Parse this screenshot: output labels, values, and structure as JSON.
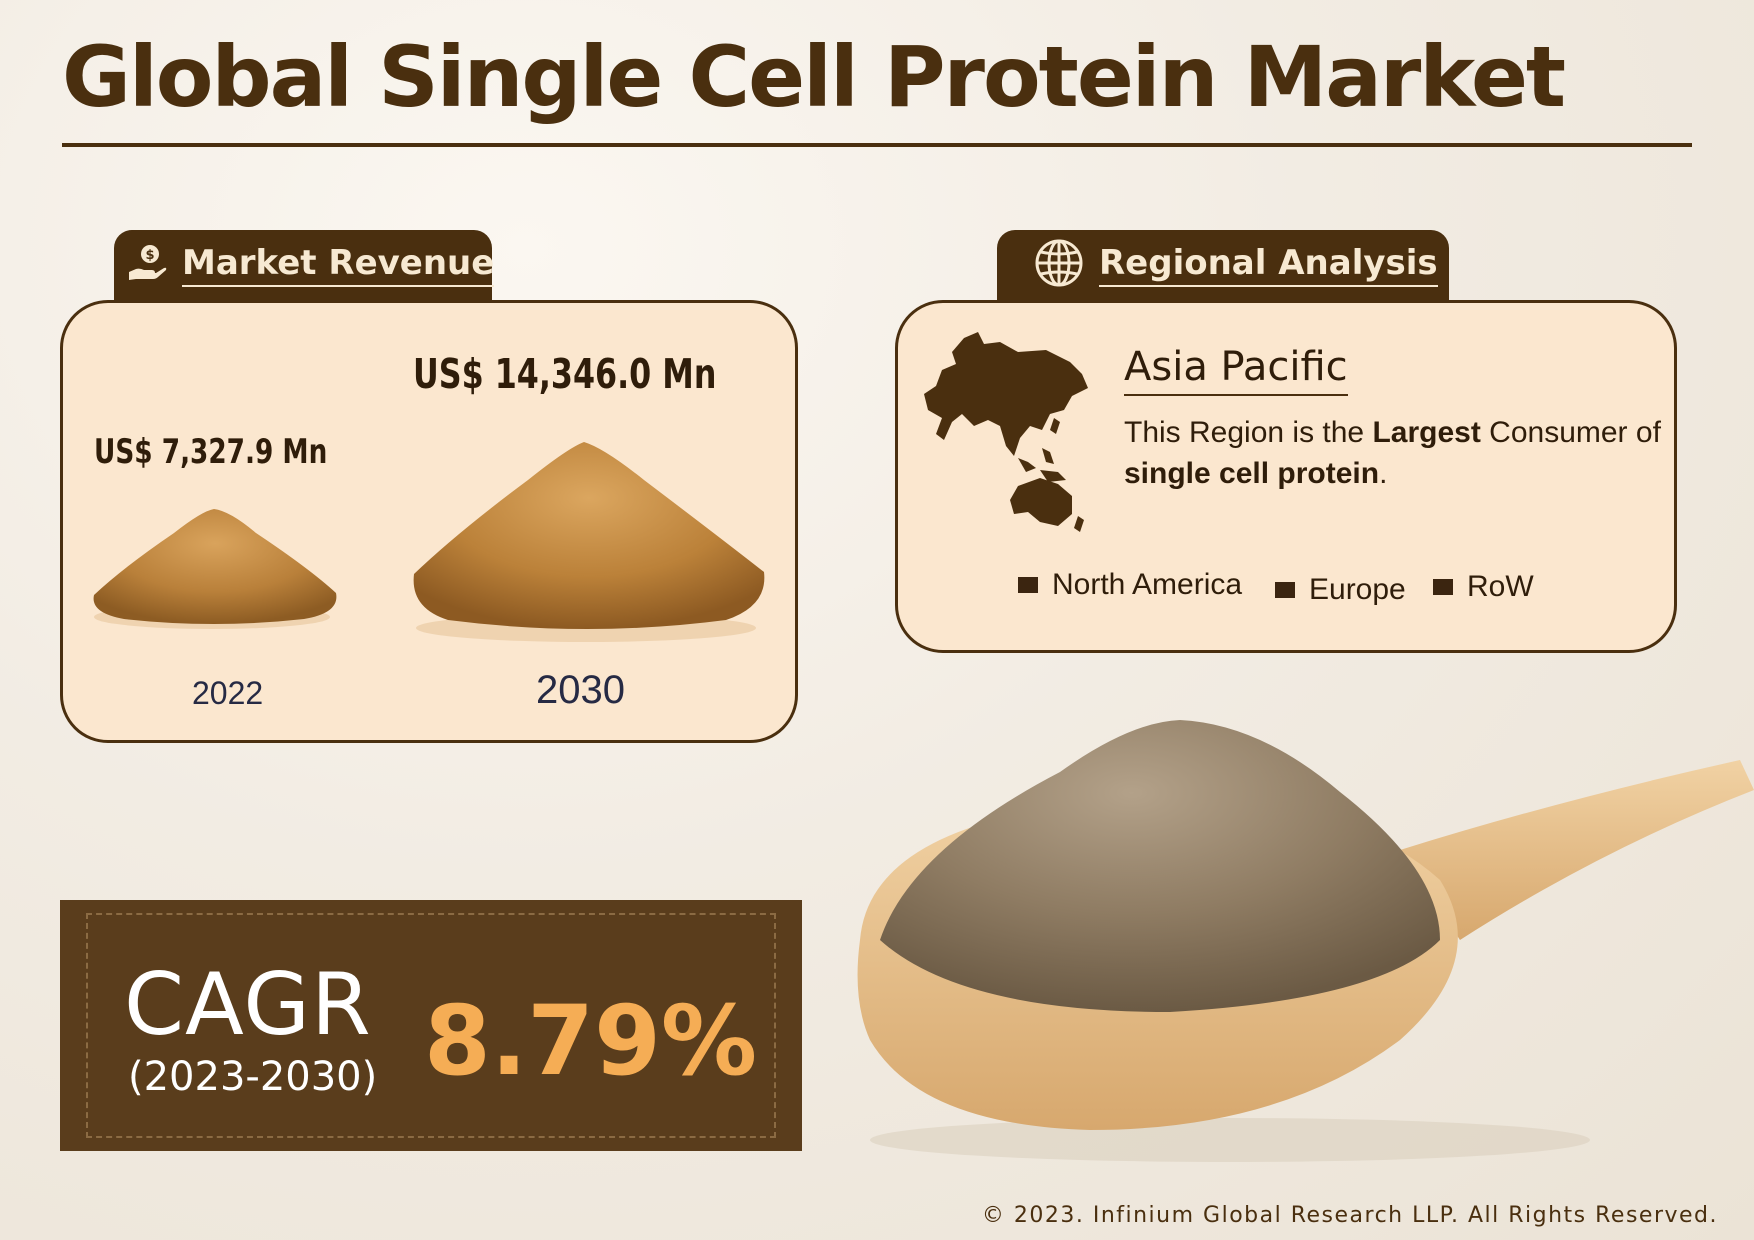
{
  "title": "Global Single Cell Protein Market",
  "market_revenue": {
    "tab_label": "Market Revenue",
    "items": [
      {
        "year": "2022",
        "value": "US$ 7,327.9 Mn"
      },
      {
        "year": "2030",
        "value": "US$ 14,346.0 Mn"
      }
    ]
  },
  "regional_analysis": {
    "tab_label": "Regional Analysis",
    "region": "Asia Pacific",
    "description": {
      "p1": "This Region is the ",
      "b1": "Largest",
      "p2": " Consumer of ",
      "b2": "single cell protein",
      "p3": "."
    },
    "legend": [
      "North America",
      "Europe",
      "RoW"
    ]
  },
  "cagr": {
    "label": "CAGR",
    "period": "(2023-2030)",
    "value": "8.79%"
  },
  "copyright": "© 2023. Infinium Global Research LLP. All Rights Reserved.",
  "icons": {
    "revenue": "hand-coin-icon",
    "regional": "globe-icon",
    "map": "asia-pacific-map-icon"
  },
  "colors": {
    "brown": "#4a2f0f",
    "card": "#fbe7cf",
    "cagr_box": "#5a3d1c",
    "accent": "#f5ad55"
  }
}
